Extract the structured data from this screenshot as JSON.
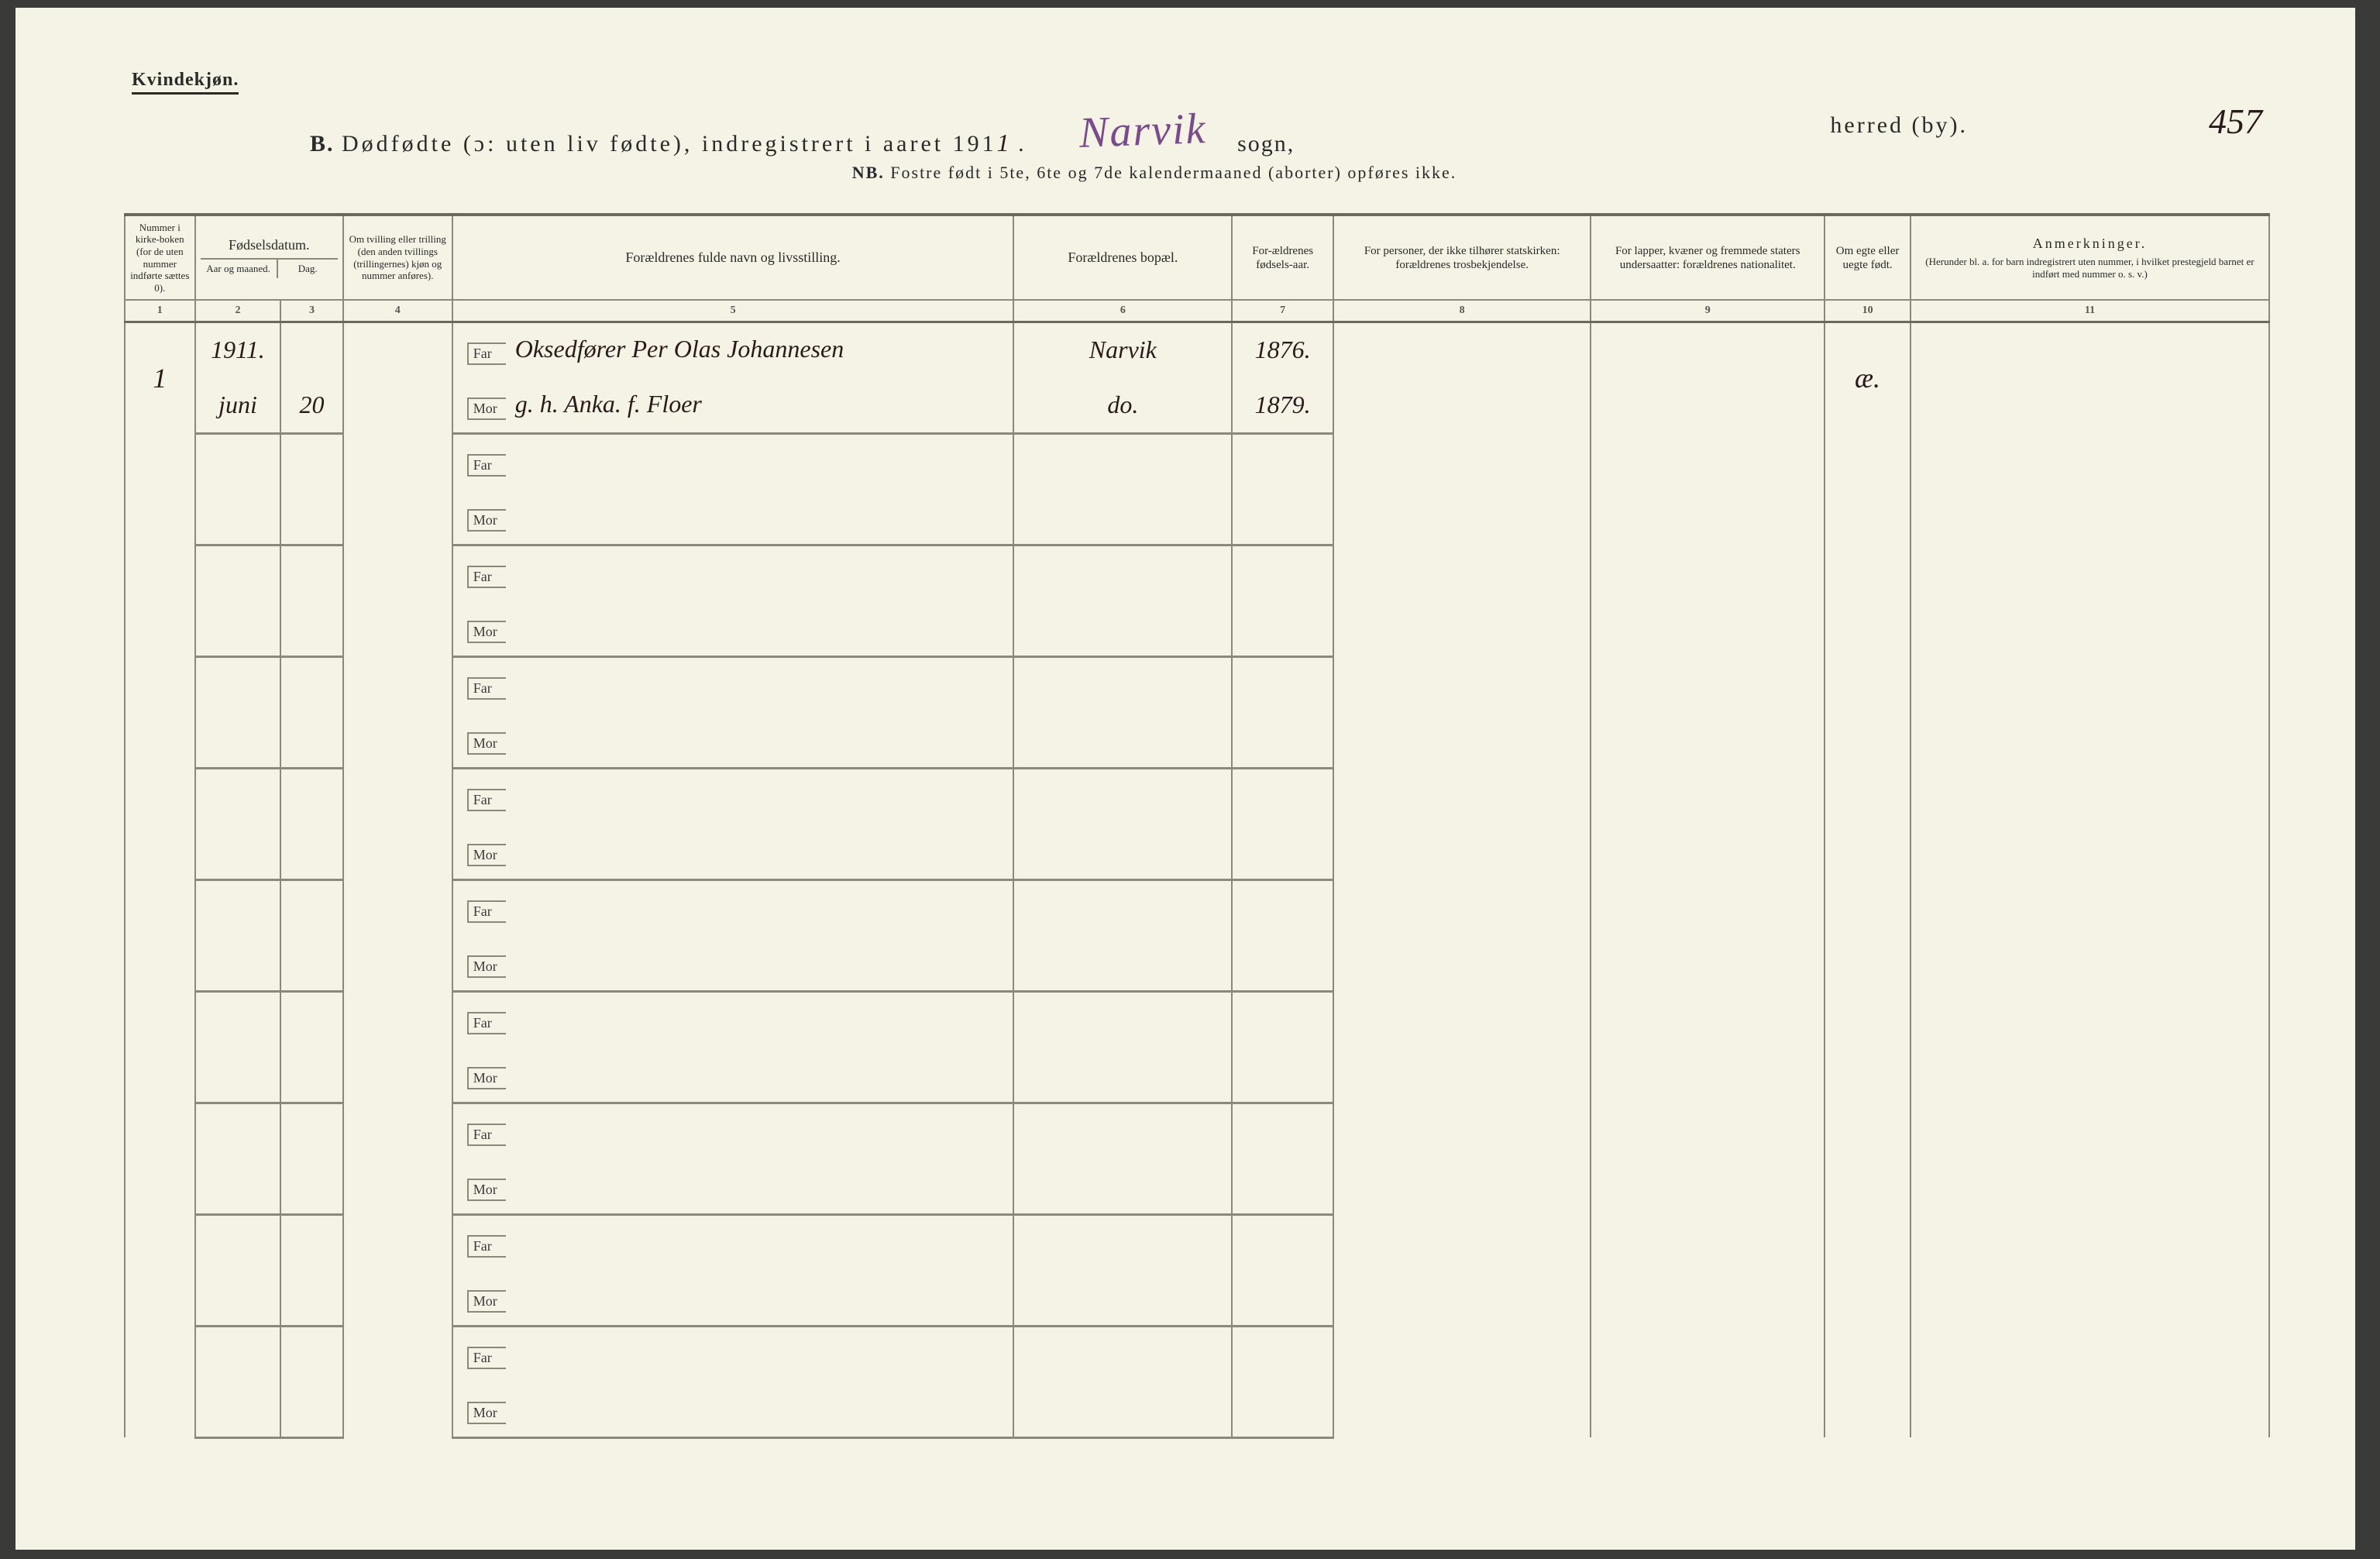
{
  "corner_label": "Kvindekjøn.",
  "header": {
    "prefix": "B.",
    "title_main": "Dødfødte (ɔ: uten liv fødte), indregistrert i aaret 191",
    "year_handwritten": "1",
    "sogn_label": "sogn,",
    "sogn_value": "Narvik",
    "herred_label": "herred (by).",
    "page_number": "457"
  },
  "sub_note": {
    "lead": "NB.",
    "text": "Fostre født i 5te, 6te og 7de kalendermaaned (aborter) opføres ikke."
  },
  "columns": {
    "c1": "Nummer i kirke-boken (for de uten nummer indførte sættes 0).",
    "c2_group": "Fødselsdatum.",
    "c2a": "Aar og maaned.",
    "c2b": "Dag.",
    "c3": "Om tvilling eller trilling (den anden tvillings (trillingernes) kjøn og nummer anføres).",
    "c4": "Forældrenes fulde navn og livsstilling.",
    "c5": "Forældrenes bopæl.",
    "c6": "For-ældrenes fødsels-aar.",
    "c7": "For personer, der ikke tilhører statskirken: forældrenes trosbekjendelse.",
    "c8": "For lapper, kvæner og fremmede staters undersaatter: forældrenes nationalitet.",
    "c9": "Om egte eller uegte født.",
    "c10_title": "Anmerkninger.",
    "c10_sub": "(Herunder bl. a. for barn indregistrert uten nummer, i hvilket prestegjeld barnet er indført med nummer o. s. v.)"
  },
  "col_numbers": [
    "1",
    "2",
    "3",
    "4",
    "5",
    "6",
    "7",
    "8",
    "9",
    "10",
    "11"
  ],
  "labels": {
    "far": "Far",
    "mor": "Mor"
  },
  "entries": [
    {
      "num": "1",
      "aar": "1911.",
      "maaned": "juni",
      "dag": "20",
      "far_navn": "Oksedfører Per Olas Johannesen",
      "mor_navn": "g. h.  Anka.  f.  Floer",
      "far_bopel": "Narvik",
      "mor_bopel": "do.",
      "far_faar": "1876.",
      "mor_faar": "1879.",
      "egte": "æ."
    }
  ],
  "empty_rows": 9,
  "colors": {
    "paper": "#f4f3e5",
    "ink": "#2a2a2a",
    "rule": "#8a8a7a",
    "handwriting_purple": "#7a4a8a",
    "handwriting_dark": "#2a1a1a"
  }
}
